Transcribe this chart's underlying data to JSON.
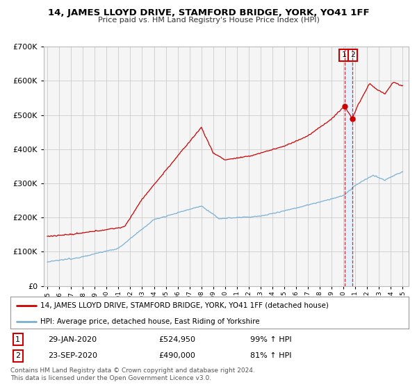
{
  "title": "14, JAMES LLOYD DRIVE, STAMFORD BRIDGE, YORK, YO41 1FF",
  "subtitle": "Price paid vs. HM Land Registry's House Price Index (HPI)",
  "legend_line1": "14, JAMES LLOYD DRIVE, STAMFORD BRIDGE, YORK, YO41 1FF (detached house)",
  "legend_line2": "HPI: Average price, detached house, East Riding of Yorkshire",
  "annotation1_label": "1",
  "annotation1_date": "29-JAN-2020",
  "annotation1_price": "£524,950",
  "annotation1_hpi": "99% ↑ HPI",
  "annotation2_label": "2",
  "annotation2_date": "23-SEP-2020",
  "annotation2_price": "£490,000",
  "annotation2_hpi": "81% ↑ HPI",
  "footer1": "Contains HM Land Registry data © Crown copyright and database right 2024.",
  "footer2": "This data is licensed under the Open Government Licence v3.0.",
  "red_color": "#cc0000",
  "blue_color": "#7ab0d4",
  "vline_color": "#cc0000",
  "shade_color": "#ddeeff",
  "grid_color": "#cccccc",
  "bg_color": "#ffffff",
  "plot_bg_color": "#f5f5f5",
  "ylim": [
    0,
    700000
  ],
  "xlim_start": 1994.7,
  "xlim_end": 2025.5,
  "transaction1_x": 2020.08,
  "transaction1_y": 524950,
  "transaction2_x": 2020.73,
  "transaction2_y": 490000,
  "vline1_x": 2020.08,
  "vline2_x": 2020.73
}
